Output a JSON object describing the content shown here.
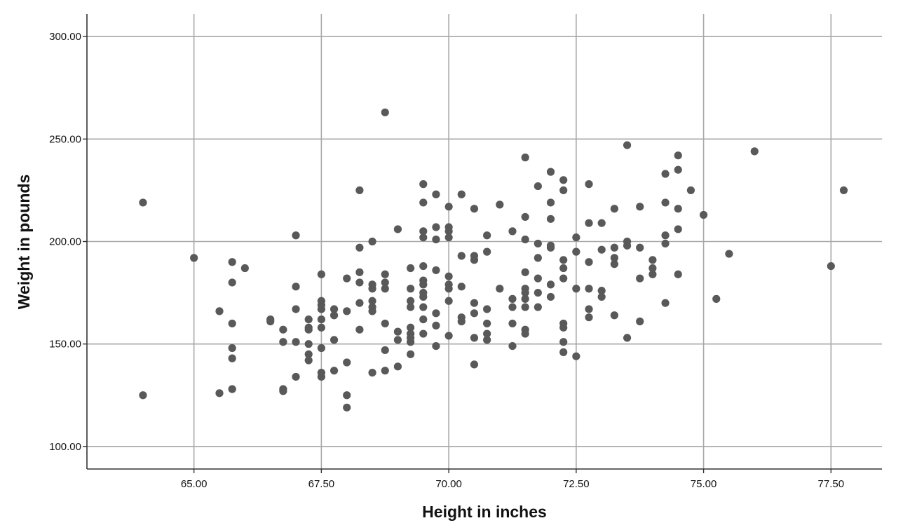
{
  "chart_data": {
    "type": "scatter",
    "title": "",
    "xlabel": "Height in inches",
    "ylabel": "Weight in pounds",
    "xlim": [
      62.9,
      78.5
    ],
    "ylim": [
      89,
      311
    ],
    "x_ticks": [
      65.0,
      67.5,
      70.0,
      72.5,
      75.0,
      77.5
    ],
    "x_tick_labels": [
      "65.00",
      "67.50",
      "70.00",
      "72.50",
      "75.00",
      "77.50"
    ],
    "y_ticks": [
      100,
      150,
      200,
      250,
      300
    ],
    "y_tick_labels": [
      "100.00",
      "150.00",
      "200.00",
      "250.00",
      "300.00"
    ],
    "grid": true,
    "legend": "none",
    "point_color": "#595959",
    "points": [
      [
        64.0,
        219
      ],
      [
        64.0,
        125
      ],
      [
        65.0,
        192
      ],
      [
        65.5,
        166
      ],
      [
        65.5,
        126
      ],
      [
        65.75,
        190
      ],
      [
        65.75,
        180
      ],
      [
        65.75,
        160
      ],
      [
        65.75,
        148
      ],
      [
        65.75,
        143
      ],
      [
        65.75,
        128
      ],
      [
        66.0,
        187
      ],
      [
        66.5,
        162
      ],
      [
        66.5,
        161
      ],
      [
        66.75,
        157
      ],
      [
        66.75,
        151
      ],
      [
        66.75,
        128
      ],
      [
        66.75,
        127
      ],
      [
        67.0,
        203
      ],
      [
        67.0,
        178
      ],
      [
        67.0,
        167
      ],
      [
        67.0,
        151
      ],
      [
        67.0,
        134
      ],
      [
        67.25,
        162
      ],
      [
        67.25,
        158
      ],
      [
        67.25,
        157
      ],
      [
        67.25,
        150
      ],
      [
        67.25,
        145
      ],
      [
        67.25,
        142
      ],
      [
        67.5,
        184
      ],
      [
        67.5,
        171
      ],
      [
        67.5,
        169
      ],
      [
        67.5,
        167
      ],
      [
        67.5,
        162
      ],
      [
        67.5,
        158
      ],
      [
        67.5,
        148
      ],
      [
        67.5,
        136
      ],
      [
        67.5,
        134
      ],
      [
        67.75,
        167
      ],
      [
        67.75,
        164
      ],
      [
        67.75,
        152
      ],
      [
        67.75,
        137
      ],
      [
        68.0,
        182
      ],
      [
        68.0,
        166
      ],
      [
        68.0,
        141
      ],
      [
        68.0,
        125
      ],
      [
        68.0,
        119
      ],
      [
        68.25,
        225
      ],
      [
        68.25,
        197
      ],
      [
        68.25,
        185
      ],
      [
        68.25,
        180
      ],
      [
        68.25,
        170
      ],
      [
        68.25,
        157
      ],
      [
        68.5,
        200
      ],
      [
        68.5,
        179
      ],
      [
        68.5,
        177
      ],
      [
        68.5,
        171
      ],
      [
        68.5,
        168
      ],
      [
        68.5,
        166
      ],
      [
        68.5,
        136
      ],
      [
        68.75,
        263
      ],
      [
        68.75,
        184
      ],
      [
        68.75,
        180
      ],
      [
        68.75,
        177
      ],
      [
        68.75,
        160
      ],
      [
        68.75,
        147
      ],
      [
        68.75,
        137
      ],
      [
        69.0,
        206
      ],
      [
        69.0,
        156
      ],
      [
        69.0,
        152
      ],
      [
        69.0,
        139
      ],
      [
        69.25,
        187
      ],
      [
        69.25,
        177
      ],
      [
        69.25,
        171
      ],
      [
        69.25,
        168
      ],
      [
        69.25,
        158
      ],
      [
        69.25,
        155
      ],
      [
        69.25,
        153
      ],
      [
        69.25,
        151
      ],
      [
        69.25,
        145
      ],
      [
        69.5,
        228
      ],
      [
        69.5,
        219
      ],
      [
        69.5,
        205
      ],
      [
        69.5,
        202
      ],
      [
        69.5,
        188
      ],
      [
        69.5,
        181
      ],
      [
        69.5,
        179
      ],
      [
        69.5,
        175
      ],
      [
        69.5,
        173
      ],
      [
        69.5,
        168
      ],
      [
        69.5,
        162
      ],
      [
        69.5,
        155
      ],
      [
        69.75,
        223
      ],
      [
        69.75,
        207
      ],
      [
        69.75,
        201
      ],
      [
        69.75,
        186
      ],
      [
        69.75,
        165
      ],
      [
        69.75,
        159
      ],
      [
        69.75,
        149
      ],
      [
        70.0,
        217
      ],
      [
        70.0,
        207
      ],
      [
        70.0,
        205
      ],
      [
        70.0,
        202
      ],
      [
        70.0,
        183
      ],
      [
        70.0,
        179
      ],
      [
        70.0,
        177
      ],
      [
        70.0,
        171
      ],
      [
        70.0,
        154
      ],
      [
        70.25,
        223
      ],
      [
        70.25,
        193
      ],
      [
        70.25,
        178
      ],
      [
        70.25,
        163
      ],
      [
        70.25,
        161
      ],
      [
        70.5,
        216
      ],
      [
        70.5,
        193
      ],
      [
        70.5,
        191
      ],
      [
        70.5,
        170
      ],
      [
        70.5,
        165
      ],
      [
        70.5,
        153
      ],
      [
        70.5,
        140
      ],
      [
        70.75,
        203
      ],
      [
        70.75,
        195
      ],
      [
        70.75,
        167
      ],
      [
        70.75,
        160
      ],
      [
        70.75,
        155
      ],
      [
        70.75,
        152
      ],
      [
        71.0,
        218
      ],
      [
        71.0,
        177
      ],
      [
        71.25,
        205
      ],
      [
        71.25,
        172
      ],
      [
        71.25,
        168
      ],
      [
        71.25,
        160
      ],
      [
        71.25,
        149
      ],
      [
        71.5,
        241
      ],
      [
        71.5,
        212
      ],
      [
        71.5,
        201
      ],
      [
        71.5,
        185
      ],
      [
        71.5,
        177
      ],
      [
        71.5,
        175
      ],
      [
        71.5,
        172
      ],
      [
        71.5,
        168
      ],
      [
        71.5,
        157
      ],
      [
        71.5,
        155
      ],
      [
        71.75,
        227
      ],
      [
        71.75,
        199
      ],
      [
        71.75,
        192
      ],
      [
        71.75,
        182
      ],
      [
        71.75,
        175
      ],
      [
        71.75,
        168
      ],
      [
        72.0,
        234
      ],
      [
        72.0,
        219
      ],
      [
        72.0,
        211
      ],
      [
        72.0,
        198
      ],
      [
        72.0,
        197
      ],
      [
        72.0,
        179
      ],
      [
        72.0,
        173
      ],
      [
        72.25,
        230
      ],
      [
        72.25,
        225
      ],
      [
        72.25,
        191
      ],
      [
        72.25,
        187
      ],
      [
        72.25,
        182
      ],
      [
        72.25,
        160
      ],
      [
        72.25,
        158
      ],
      [
        72.25,
        151
      ],
      [
        72.25,
        146
      ],
      [
        72.5,
        202
      ],
      [
        72.5,
        195
      ],
      [
        72.5,
        177
      ],
      [
        72.5,
        144
      ],
      [
        72.75,
        228
      ],
      [
        72.75,
        209
      ],
      [
        72.75,
        190
      ],
      [
        72.75,
        177
      ],
      [
        72.75,
        167
      ],
      [
        72.75,
        163
      ],
      [
        73.0,
        209
      ],
      [
        73.0,
        196
      ],
      [
        73.0,
        176
      ],
      [
        73.0,
        173
      ],
      [
        73.25,
        216
      ],
      [
        73.25,
        197
      ],
      [
        73.25,
        192
      ],
      [
        73.25,
        189
      ],
      [
        73.25,
        164
      ],
      [
        73.5,
        247
      ],
      [
        73.5,
        200
      ],
      [
        73.5,
        198
      ],
      [
        73.5,
        153
      ],
      [
        73.75,
        217
      ],
      [
        73.75,
        197
      ],
      [
        73.75,
        182
      ],
      [
        73.75,
        161
      ],
      [
        74.0,
        191
      ],
      [
        74.0,
        187
      ],
      [
        74.0,
        184
      ],
      [
        74.25,
        233
      ],
      [
        74.25,
        219
      ],
      [
        74.25,
        203
      ],
      [
        74.25,
        199
      ],
      [
        74.25,
        170
      ],
      [
        74.5,
        242
      ],
      [
        74.5,
        235
      ],
      [
        74.5,
        216
      ],
      [
        74.5,
        206
      ],
      [
        74.5,
        184
      ],
      [
        74.75,
        225
      ],
      [
        75.0,
        213
      ],
      [
        75.25,
        172
      ],
      [
        75.5,
        194
      ],
      [
        76.0,
        244
      ],
      [
        77.5,
        188
      ],
      [
        77.75,
        225
      ]
    ]
  }
}
